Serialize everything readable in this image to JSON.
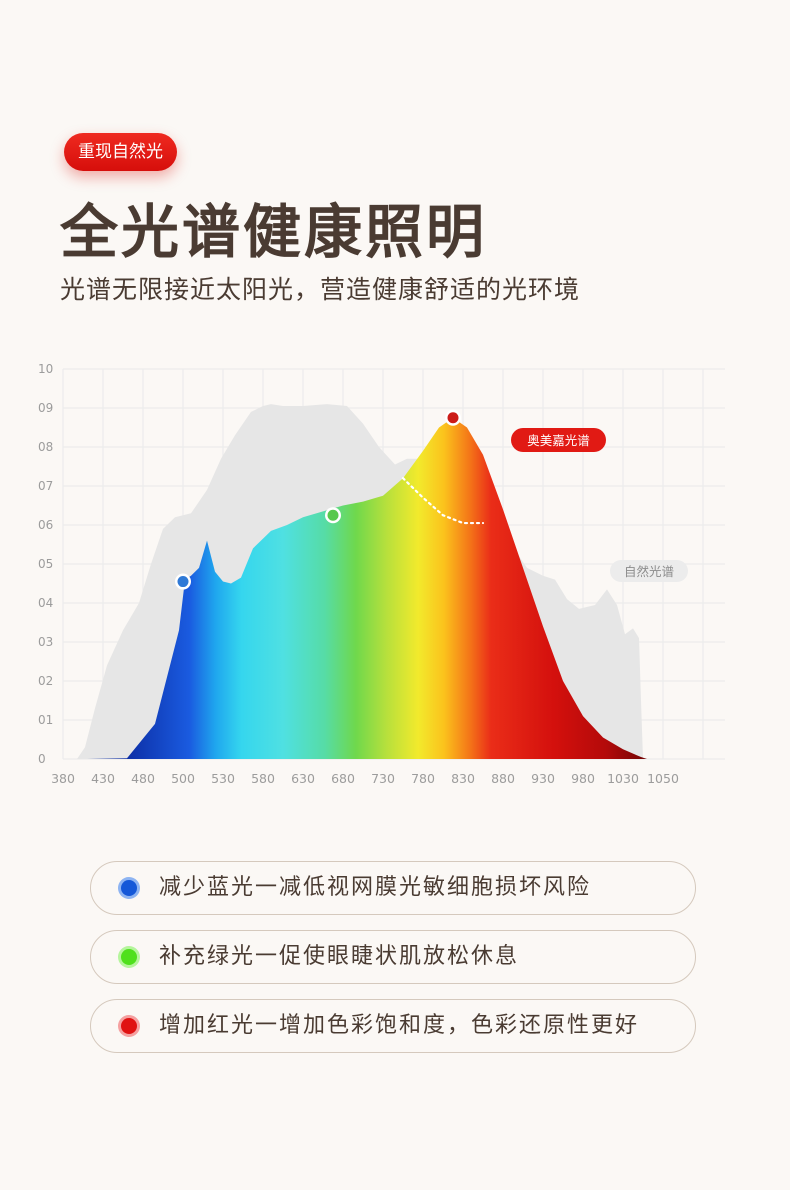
{
  "header": {
    "badge_label": "重现自然光",
    "title": "全光谱健康照明",
    "subtitle": "光谱无限接近太阳光，营造健康舒适的光环境"
  },
  "colors": {
    "accent": "#e11a14",
    "text": "#4a3b32",
    "background": "#fbf8f5",
    "natural_spectrum": "#e6e6e6",
    "grid": "#ececec"
  },
  "chart_data": {
    "type": "area",
    "x_ticks": [
      "380",
      "430",
      "480",
      "500",
      "530",
      "580",
      "630",
      "680",
      "730",
      "780",
      "830",
      "880",
      "930",
      "980",
      "1030",
      "1050"
    ],
    "y_ticks": [
      "0",
      "01",
      "02",
      "03",
      "04",
      "05",
      "06",
      "07",
      "08",
      "09",
      "10"
    ],
    "ylim": [
      0,
      10
    ],
    "grid": true,
    "series": [
      {
        "name": "奥美嘉光谱",
        "gradient": "visible-spectrum blue → cyan → green → yellow → red → dark red",
        "points": [
          [
            0.0,
            0.0
          ],
          [
            0.6,
            0.0
          ],
          [
            1.6,
            0.02
          ],
          [
            2.3,
            0.9
          ],
          [
            2.9,
            3.3
          ],
          [
            3.05,
            4.6
          ],
          [
            3.2,
            4.7
          ],
          [
            3.4,
            4.9
          ],
          [
            3.6,
            5.6
          ],
          [
            3.8,
            4.8
          ],
          [
            4.0,
            4.55
          ],
          [
            4.2,
            4.5
          ],
          [
            4.45,
            4.65
          ],
          [
            4.75,
            5.4
          ],
          [
            5.2,
            5.85
          ],
          [
            5.6,
            6.0
          ],
          [
            6.0,
            6.2
          ],
          [
            6.5,
            6.35
          ],
          [
            7.0,
            6.5
          ],
          [
            7.5,
            6.6
          ],
          [
            8.0,
            6.75
          ],
          [
            8.5,
            7.2
          ],
          [
            9.0,
            7.9
          ],
          [
            9.4,
            8.5
          ],
          [
            9.75,
            8.75
          ],
          [
            10.1,
            8.5
          ],
          [
            10.5,
            7.8
          ],
          [
            11.0,
            6.4
          ],
          [
            11.5,
            4.9
          ],
          [
            12.0,
            3.4
          ],
          [
            12.5,
            2.0
          ],
          [
            13.0,
            1.1
          ],
          [
            13.5,
            0.55
          ],
          [
            14.0,
            0.25
          ],
          [
            14.45,
            0.05
          ],
          [
            14.6,
            0.0
          ]
        ]
      },
      {
        "name": "自然光谱",
        "points": [
          [
            0.35,
            0.0
          ],
          [
            0.55,
            0.3
          ],
          [
            0.8,
            1.3
          ],
          [
            1.1,
            2.4
          ],
          [
            1.5,
            3.3
          ],
          [
            1.9,
            4.0
          ],
          [
            2.2,
            5.0
          ],
          [
            2.5,
            5.9
          ],
          [
            2.8,
            6.2
          ],
          [
            3.2,
            6.3
          ],
          [
            3.6,
            6.9
          ],
          [
            3.95,
            7.7
          ],
          [
            4.3,
            8.3
          ],
          [
            4.7,
            8.9
          ],
          [
            5.0,
            9.05
          ],
          [
            5.2,
            9.1
          ],
          [
            5.5,
            9.05
          ],
          [
            6.0,
            9.05
          ],
          [
            6.6,
            9.1
          ],
          [
            7.1,
            9.05
          ],
          [
            7.5,
            8.6
          ],
          [
            7.9,
            8.0
          ],
          [
            8.3,
            7.55
          ],
          [
            8.6,
            7.7
          ],
          [
            9.0,
            7.7
          ],
          [
            9.5,
            7.4
          ],
          [
            10.0,
            7.05
          ],
          [
            10.5,
            6.6
          ],
          [
            10.8,
            6.2
          ],
          [
            11.2,
            5.5
          ],
          [
            11.6,
            4.9
          ],
          [
            12.0,
            4.7
          ],
          [
            12.3,
            4.6
          ],
          [
            12.6,
            4.1
          ],
          [
            12.9,
            3.85
          ],
          [
            13.3,
            3.95
          ],
          [
            13.6,
            4.35
          ],
          [
            13.85,
            3.95
          ],
          [
            14.05,
            3.2
          ],
          [
            14.25,
            3.35
          ],
          [
            14.4,
            3.1
          ],
          [
            14.45,
            1.5
          ],
          [
            14.5,
            0.0
          ]
        ]
      }
    ],
    "annotations": {
      "natural_peak_continuation": [
        [
          8.5,
          7.2
        ],
        [
          9.0,
          6.7
        ],
        [
          9.5,
          6.25
        ],
        [
          10.0,
          6.05
        ],
        [
          10.5,
          6.05
        ]
      ],
      "markers": [
        {
          "x": 3.0,
          "y": 4.55,
          "color": "#2f79d6"
        },
        {
          "x": 6.75,
          "y": 6.25,
          "color": "#58c84d"
        },
        {
          "x": 9.75,
          "y": 8.75,
          "color": "#cc1c19"
        }
      ],
      "labels": [
        {
          "text": "奥美嘉光谱",
          "style": "red-pill"
        },
        {
          "text": "自然光谱",
          "style": "grey-pill"
        }
      ]
    }
  },
  "features": [
    {
      "text": "减少蓝光一减低视网膜光敏细胞损坏风险",
      "dot_color": "#1558d8",
      "dot_glow": "#8eb4f2"
    },
    {
      "text": "补充绿光一促使眼睫状肌放松休息",
      "dot_color": "#4fe01c",
      "dot_glow": "#b5f59c"
    },
    {
      "text": "增加红光一增加色彩饱和度，色彩还原性更好",
      "dot_color": "#e01212",
      "dot_glow": "#f5a0a0"
    }
  ]
}
